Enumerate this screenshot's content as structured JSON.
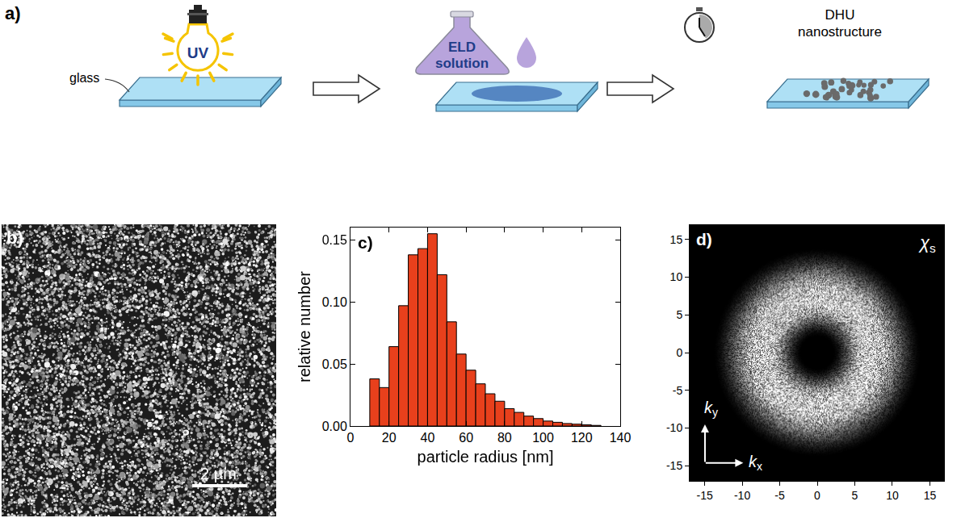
{
  "panels": {
    "a": {
      "label": "a)",
      "bulb_label": "UV",
      "glass_label": "glass",
      "flask_label": [
        "ELD",
        "solution"
      ],
      "result_label": [
        "DHU",
        "nanostructure"
      ]
    },
    "b": {
      "label": "b)",
      "scale_bar": {
        "label": "2 µm",
        "length_um": 2,
        "image_width_um": 10
      }
    }
  },
  "chart_data": [
    {
      "type": "histogram",
      "label": "c)",
      "x_label": "particle radius [nm]",
      "y_label": "relative number",
      "bins": [
        10,
        15,
        20,
        25,
        30,
        35,
        40,
        45,
        50,
        55,
        60,
        65,
        70,
        75,
        80,
        85,
        90,
        95,
        100,
        105,
        110,
        115,
        120,
        125,
        130
      ],
      "values": [
        0.038,
        0.031,
        0.064,
        0.097,
        0.138,
        0.143,
        0.155,
        0.122,
        0.084,
        0.058,
        0.045,
        0.034,
        0.026,
        0.02,
        0.014,
        0.011,
        0.008,
        0.006,
        0.004,
        0.003,
        0.002,
        0.0015,
        0.001,
        0.0005
      ],
      "color": "#e8401c",
      "xlim": [
        0,
        140
      ],
      "xticks": [
        0,
        20,
        40,
        60,
        80,
        100,
        120,
        140
      ],
      "ylim": [
        0,
        0.16
      ],
      "yticks": [
        {
          "value": 0,
          "label": "0.00"
        },
        {
          "value": 0.05,
          "label": "0.05"
        },
        {
          "value": 0.1,
          "label": "0.10"
        },
        {
          "value": 0.15,
          "label": "0.15"
        }
      ],
      "grid": false
    },
    {
      "type": "image",
      "label": "d)",
      "symbol": {
        "text": "χ",
        "subscript": "s"
      },
      "x_label": {
        "text": "k",
        "subscript": "x"
      },
      "y_label": {
        "text": "k",
        "subscript": "y"
      },
      "xlim": [
        -17,
        17
      ],
      "xticks": [
        -15,
        -10,
        -5,
        0,
        5,
        10,
        15
      ],
      "ylim": [
        -17,
        17
      ],
      "yticks": [
        -15,
        -10,
        -5,
        0,
        5,
        10,
        15
      ],
      "ring": {
        "inner_radius": 2,
        "peak_radius": 7,
        "outer_radius": 14
      },
      "grid": false
    }
  ]
}
